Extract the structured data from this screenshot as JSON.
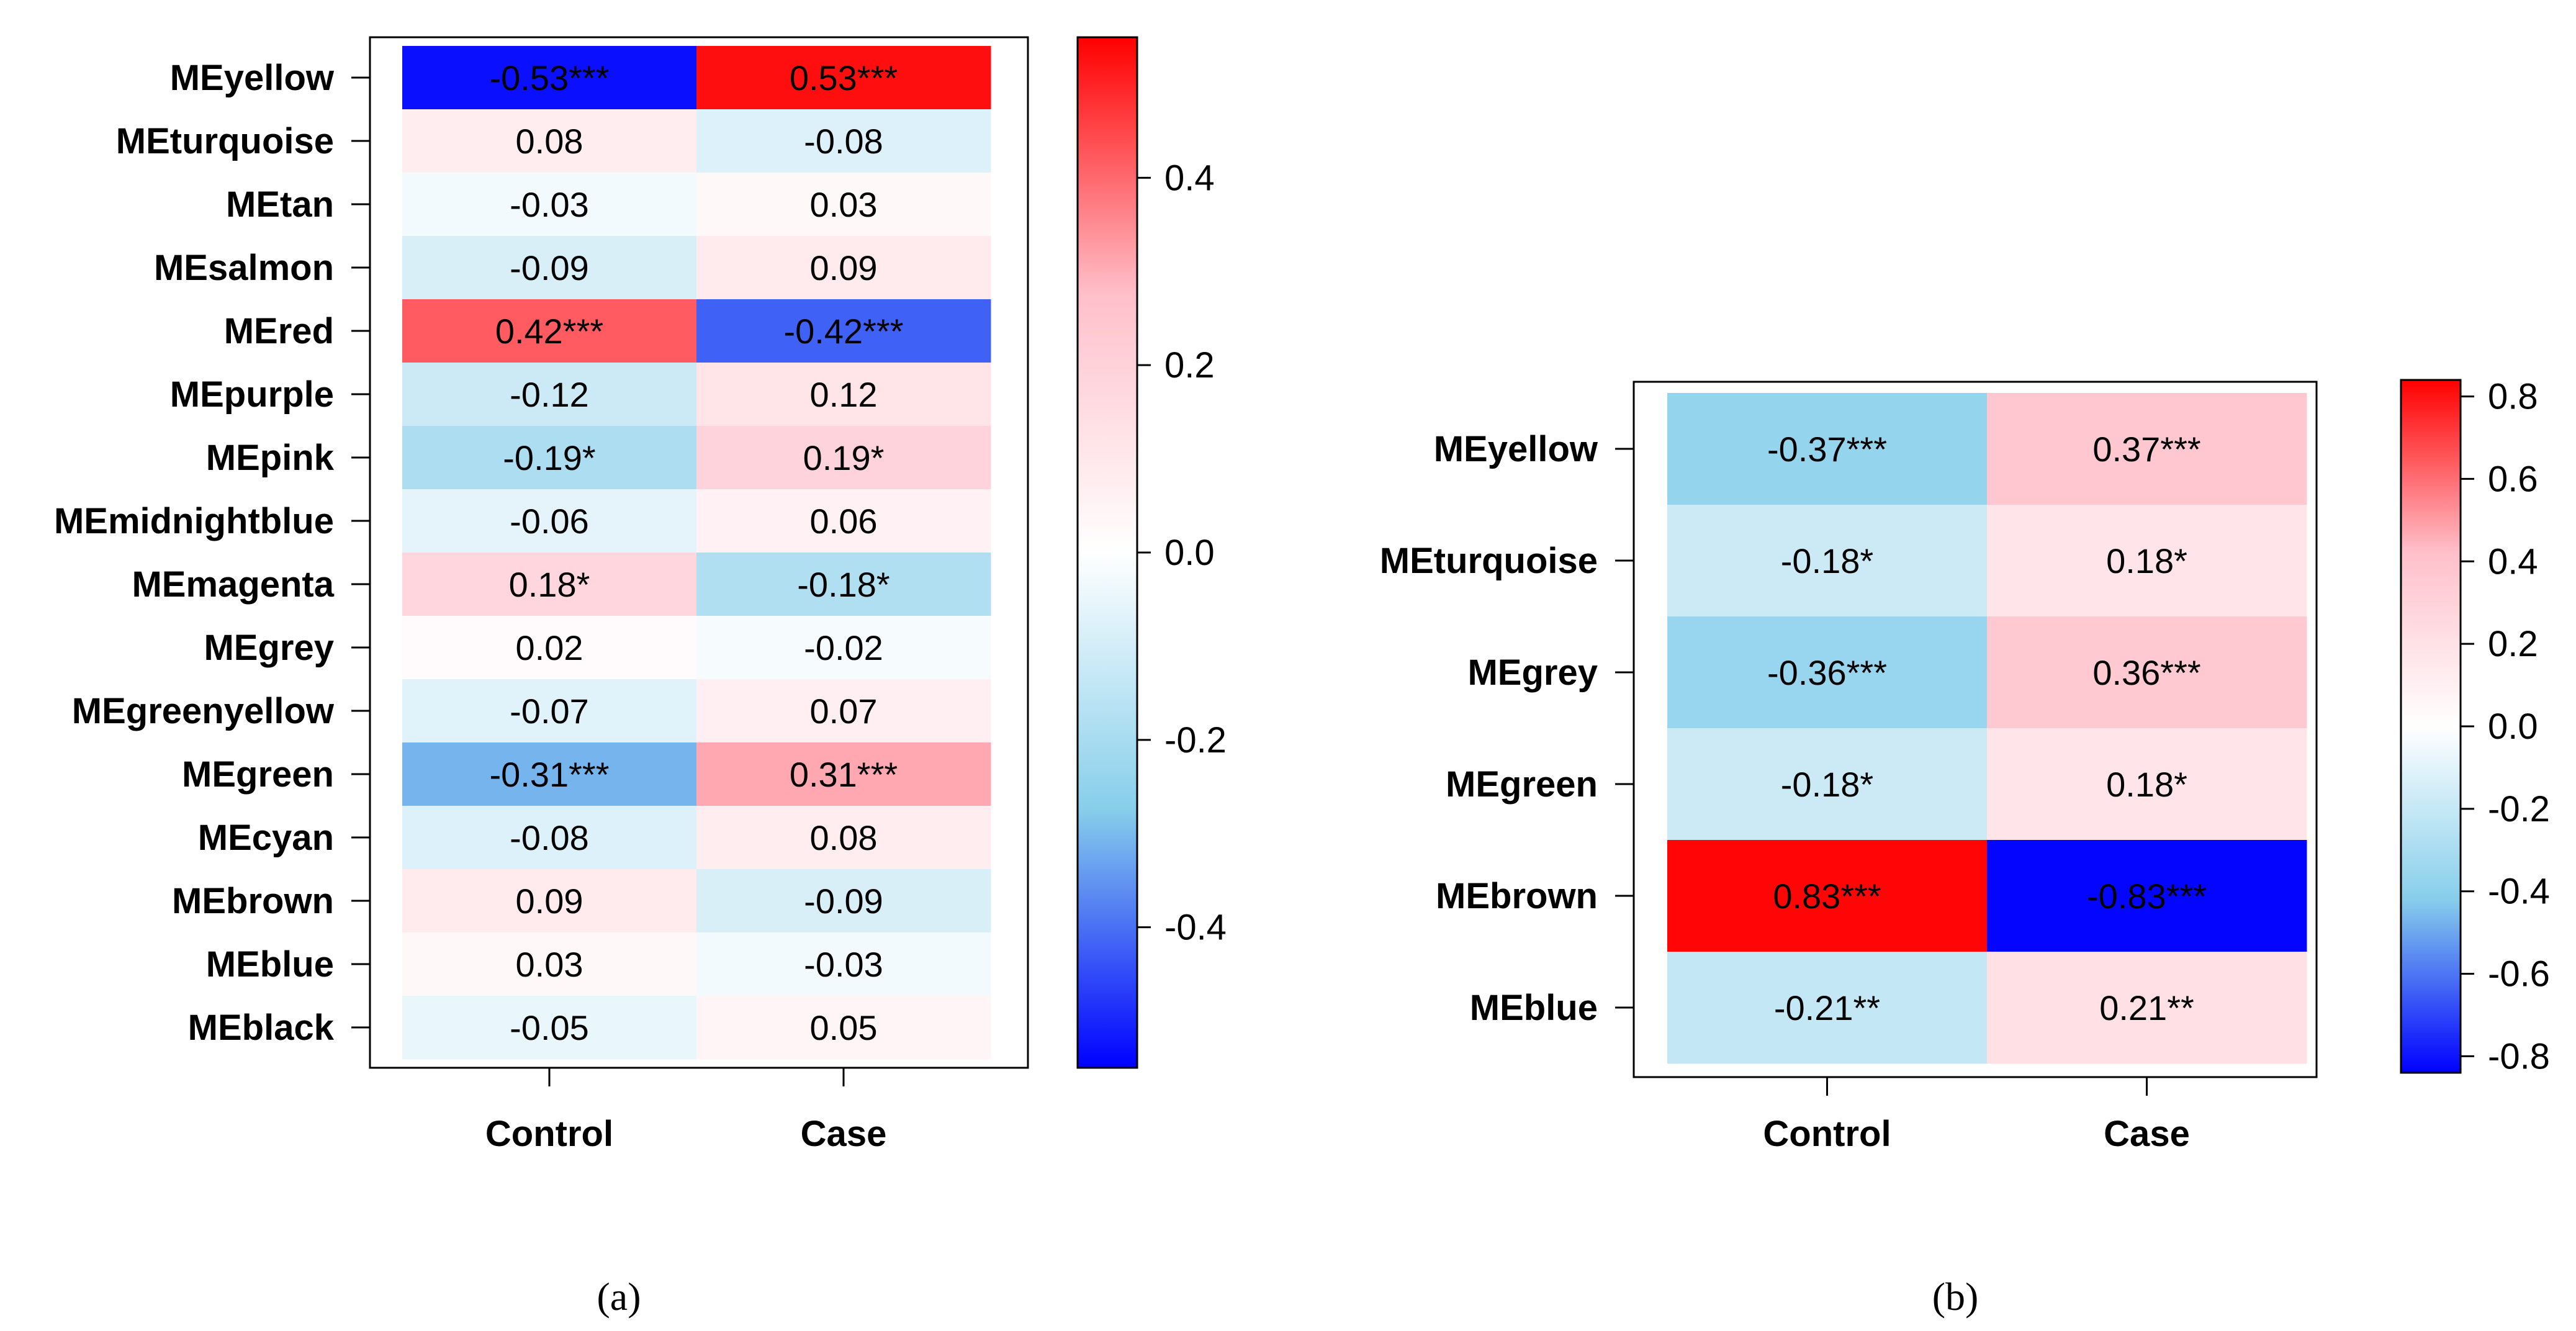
{
  "chart_data": [
    {
      "type": "heatmap",
      "panel_label": "(a)",
      "rows": [
        "MEyellow",
        "MEturquoise",
        "MEtan",
        "MEsalmon",
        "MEred",
        "MEpurple",
        "MEpink",
        "MEmidnightblue",
        "MEmagenta",
        "MEgrey",
        "MEgreenyellow",
        "MEgreen",
        "MEcyan",
        "MEbrown",
        "MEblue",
        "MEblack"
      ],
      "columns": [
        "Control",
        "Case"
      ],
      "values": [
        [
          -0.53,
          0.53
        ],
        [
          0.08,
          -0.08
        ],
        [
          -0.03,
          0.03
        ],
        [
          -0.09,
          0.09
        ],
        [
          0.42,
          -0.42
        ],
        [
          -0.12,
          0.12
        ],
        [
          -0.19,
          0.19
        ],
        [
          -0.06,
          0.06
        ],
        [
          0.18,
          -0.18
        ],
        [
          0.02,
          -0.02
        ],
        [
          -0.07,
          0.07
        ],
        [
          -0.31,
          0.31
        ],
        [
          -0.08,
          0.08
        ],
        [
          0.09,
          -0.09
        ],
        [
          0.03,
          -0.03
        ],
        [
          -0.05,
          0.05
        ]
      ],
      "labels": [
        [
          "-0.53***",
          "0.53***"
        ],
        [
          "0.08",
          "-0.08"
        ],
        [
          "-0.03",
          "0.03"
        ],
        [
          "-0.09",
          "0.09"
        ],
        [
          "0.42***",
          "-0.42***"
        ],
        [
          "-0.12",
          "0.12"
        ],
        [
          "-0.19*",
          "0.19*"
        ],
        [
          "-0.06",
          "0.06"
        ],
        [
          "0.18*",
          "-0.18*"
        ],
        [
          "0.02",
          "-0.02"
        ],
        [
          "-0.07",
          "0.07"
        ],
        [
          "-0.31***",
          "0.31***"
        ],
        [
          "-0.08",
          "0.08"
        ],
        [
          "0.09",
          "-0.09"
        ],
        [
          "0.03",
          "-0.03"
        ],
        [
          "-0.05",
          "0.05"
        ]
      ],
      "color_range": [
        -0.55,
        0.55
      ],
      "colorbar_ticks": [
        "0.4",
        "0.2",
        "0.0",
        "-0.2",
        "-0.4"
      ],
      "colorbar_tick_values": [
        0.4,
        0.2,
        0.0,
        -0.2,
        -0.4
      ],
      "colors": {
        "low": "#0000ff",
        "mid": "#ffffff",
        "high": "#ff0000",
        "mid_low": "#87ceeb",
        "mid_high": "#ffc0cb"
      }
    },
    {
      "type": "heatmap",
      "panel_label": "(b)",
      "rows": [
        "MEyellow",
        "MEturquoise",
        "MEgrey",
        "MEgreen",
        "MEbrown",
        "MEblue"
      ],
      "columns": [
        "Control",
        "Case"
      ],
      "values": [
        [
          -0.37,
          0.37
        ],
        [
          -0.18,
          0.18
        ],
        [
          -0.36,
          0.36
        ],
        [
          -0.18,
          0.18
        ],
        [
          0.83,
          -0.83
        ],
        [
          -0.21,
          0.21
        ]
      ],
      "labels": [
        [
          "-0.37***",
          "0.37***"
        ],
        [
          "-0.18*",
          "0.18*"
        ],
        [
          "-0.36***",
          "0.36***"
        ],
        [
          "-0.18*",
          "0.18*"
        ],
        [
          "0.83***",
          "-0.83***"
        ],
        [
          "-0.21**",
          "0.21**"
        ]
      ],
      "color_range": [
        -0.84,
        0.84
      ],
      "colorbar_ticks": [
        "0.8",
        "0.6",
        "0.4",
        "0.2",
        "0.0",
        "-0.2",
        "-0.4",
        "-0.6",
        "-0.8"
      ],
      "colorbar_tick_values": [
        0.8,
        0.6,
        0.4,
        0.2,
        0.0,
        -0.2,
        -0.4,
        -0.6,
        -0.8
      ],
      "colors": {
        "low": "#0000ff",
        "mid": "#ffffff",
        "high": "#ff0000",
        "mid_low": "#87ceeb",
        "mid_high": "#ffc0cb"
      }
    }
  ]
}
